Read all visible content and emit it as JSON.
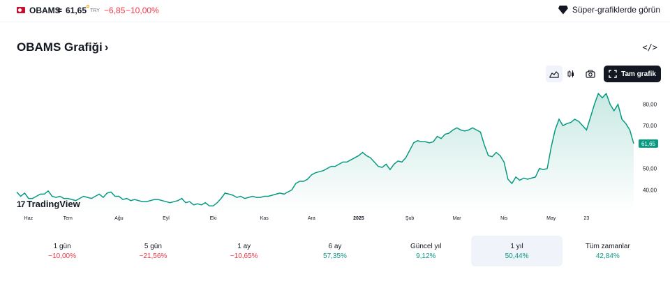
{
  "ticker": {
    "symbol": "OBAMS",
    "equals": "=",
    "price": "61,65",
    "currency": "TRY",
    "change": "−6,85",
    "change_pct": "−10,00%"
  },
  "super_charts_label": "Süper-grafiklerde görün",
  "page_title": "OBAMS Grafiği",
  "title_chevron": "›",
  "embed_symbol": "</>",
  "toolbar": {
    "icons": [
      "area-chart-icon",
      "candles-icon",
      "camera-icon"
    ],
    "fullscreen_label": "Tam grafik"
  },
  "brand_label": "TradingView",
  "colors": {
    "line": "#089981",
    "negative": "#f23645",
    "positive": "#089981",
    "dark": "#131722"
  },
  "chart_data": {
    "type": "area",
    "ylim": [
      30,
      88
    ],
    "y_ticks": [
      "80,00",
      "70,00",
      "60,00",
      "50,00",
      "40,00"
    ],
    "y_tick_values": [
      80,
      70,
      60,
      50,
      40
    ],
    "last_price_label": "61,65",
    "x_labels": [
      "Haz",
      "Tem",
      "Ağu",
      "Eyl",
      "Eki",
      "Kas",
      "Ara",
      "2025",
      "Şub",
      "Mar",
      "Nis",
      "May",
      "23"
    ],
    "x_label_index": [
      3,
      13,
      26,
      38,
      50,
      63,
      75,
      87,
      100,
      112,
      124,
      136,
      145
    ],
    "values": [
      39,
      37,
      38.5,
      36,
      36,
      37,
      38,
      38,
      39.5,
      37,
      36.5,
      37,
      36,
      36,
      35.5,
      35,
      36,
      37,
      36.5,
      36,
      37,
      38,
      36.5,
      38.5,
      39,
      37,
      37,
      35.5,
      36,
      35,
      35.5,
      35,
      34.5,
      34.5,
      35,
      35.5,
      35.5,
      35,
      34.5,
      34,
      34.5,
      35,
      36,
      34,
      34.5,
      33,
      33.5,
      33,
      34,
      32.5,
      32.5,
      34,
      36,
      38.5,
      38,
      37.5,
      36.5,
      37,
      36,
      36.5,
      37,
      36.5,
      36.5,
      37,
      37,
      37.5,
      38,
      38.5,
      38,
      39,
      40,
      43,
      44,
      44,
      45,
      47,
      48,
      48.5,
      49,
      50,
      51,
      51,
      52,
      53,
      53,
      54,
      55,
      56,
      57.5,
      56,
      55,
      53,
      51,
      50.5,
      52,
      49.5,
      52,
      53.5,
      53,
      55,
      58.5,
      62,
      63,
      62.5,
      62.5,
      62,
      62.5,
      65,
      64,
      66,
      66.5,
      68,
      69,
      68,
      67.5,
      68,
      69,
      68,
      67,
      61,
      56,
      55.5,
      57.5,
      56,
      53,
      45,
      43,
      46,
      44.5,
      45.5,
      45,
      45.5,
      46,
      50,
      49.5,
      50,
      60,
      68,
      73,
      70,
      71,
      71.5,
      73,
      72,
      70,
      68,
      74,
      80,
      85,
      83,
      85,
      80,
      77,
      80,
      73,
      71,
      68,
      61.65
    ]
  },
  "periods": [
    {
      "label": "1 gün",
      "value": "−10,00%",
      "trend": "neg"
    },
    {
      "label": "5 gün",
      "value": "−21,56%",
      "trend": "neg"
    },
    {
      "label": "1 ay",
      "value": "−10,65%",
      "trend": "neg"
    },
    {
      "label": "6 ay",
      "value": "57,35%",
      "trend": "pos"
    },
    {
      "label": "Güncel yıl",
      "value": "9,12%",
      "trend": "pos"
    },
    {
      "label": "1 yıl",
      "value": "50,44%",
      "trend": "pos",
      "active": true
    },
    {
      "label": "Tüm zamanlar",
      "value": "42,84%",
      "trend": "pos"
    }
  ]
}
